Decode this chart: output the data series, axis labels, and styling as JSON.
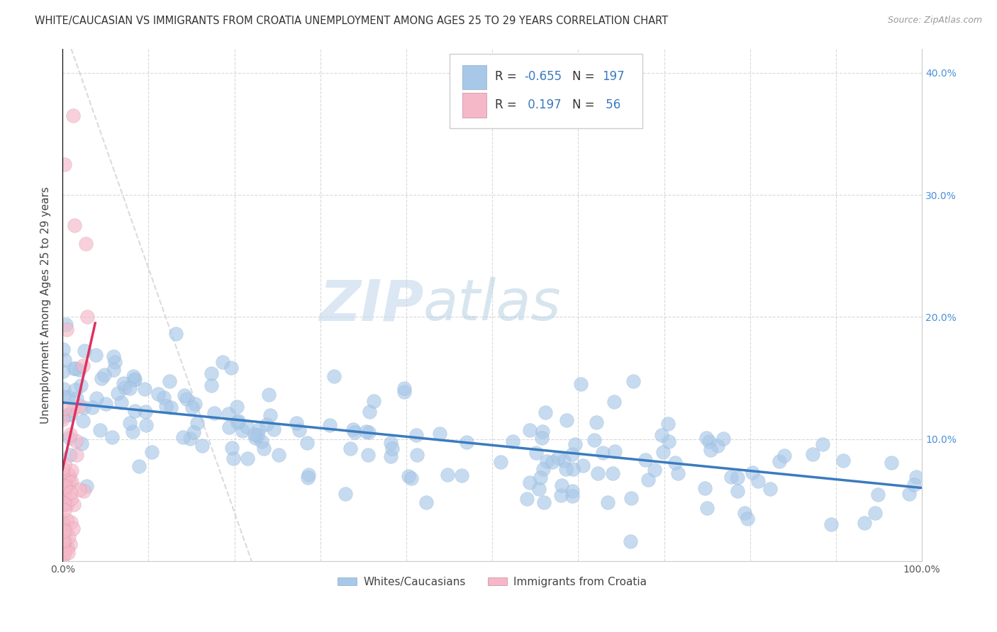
{
  "title": "WHITE/CAUCASIAN VS IMMIGRANTS FROM CROATIA UNEMPLOYMENT AMONG AGES 25 TO 29 YEARS CORRELATION CHART",
  "source": "Source: ZipAtlas.com",
  "ylabel": "Unemployment Among Ages 25 to 29 years",
  "xlim": [
    0,
    1.0
  ],
  "ylim": [
    0,
    0.42
  ],
  "blue_R": -0.655,
  "blue_N": 197,
  "pink_R": 0.197,
  "pink_N": 56,
  "blue_color": "#a8c8e8",
  "pink_color": "#f5b8c8",
  "trend_blue_color": "#3a7bbf",
  "trend_pink_color": "#e03060",
  "trend_dashed_color": "#cccccc",
  "watermark_zip": "ZIP",
  "watermark_atlas": "atlas",
  "legend_label_blue": "Whites/Caucasians",
  "legend_label_pink": "Immigrants from Croatia",
  "xtick_positions": [
    0,
    0.1,
    0.2,
    0.3,
    0.4,
    0.5,
    0.6,
    0.7,
    0.8,
    0.9,
    1.0
  ],
  "xtick_labels": [
    "0.0%",
    "",
    "",
    "",
    "",
    "",
    "",
    "",
    "",
    "",
    "100.0%"
  ],
  "ytick_positions": [
    0,
    0.1,
    0.2,
    0.3,
    0.4
  ],
  "ytick_labels_left": [
    "",
    "",
    "",
    "",
    ""
  ],
  "ytick_labels_right": [
    "",
    "10.0%",
    "20.0%",
    "30.0%",
    "40.0%"
  ]
}
